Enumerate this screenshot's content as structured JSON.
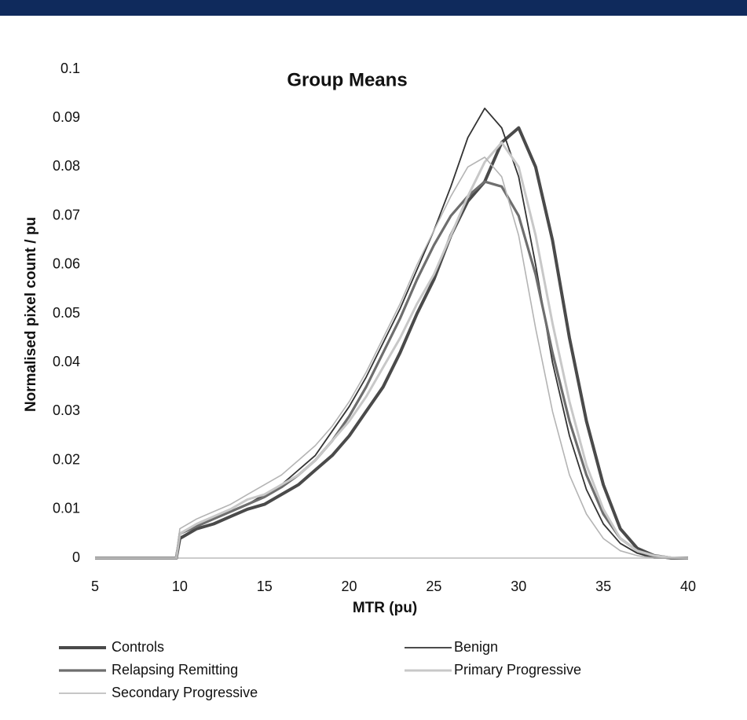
{
  "chart_data": {
    "type": "line",
    "title": "Group Means",
    "x_label": "MTR (pu)",
    "y_label": "Normalised pixel count / pu",
    "x": [
      5,
      9.8,
      10,
      11,
      12,
      13,
      14,
      15,
      16,
      17,
      18,
      19,
      20,
      21,
      22,
      23,
      24,
      25,
      26,
      27,
      28,
      29,
      30,
      31,
      32,
      33,
      34,
      35,
      36,
      37,
      38,
      39,
      40
    ],
    "series": [
      {
        "name": "Controls",
        "color": "#4a4a4a",
        "width": 4,
        "values": [
          0,
          0,
          0.004,
          0.006,
          0.007,
          0.0085,
          0.01,
          0.011,
          0.013,
          0.015,
          0.018,
          0.021,
          0.025,
          0.03,
          0.035,
          0.042,
          0.05,
          0.057,
          0.066,
          0.073,
          0.077,
          0.085,
          0.088,
          0.08,
          0.065,
          0.045,
          0.028,
          0.015,
          0.006,
          0.002,
          0.0005,
          0,
          0
        ]
      },
      {
        "name": "Benign",
        "color": "#333333",
        "width": 1.8,
        "values": [
          0,
          0,
          0.005,
          0.007,
          0.008,
          0.0095,
          0.011,
          0.013,
          0.015,
          0.018,
          0.021,
          0.026,
          0.031,
          0.037,
          0.044,
          0.051,
          0.059,
          0.067,
          0.076,
          0.086,
          0.092,
          0.088,
          0.078,
          0.06,
          0.04,
          0.025,
          0.014,
          0.007,
          0.003,
          0.001,
          0,
          0,
          0
        ]
      },
      {
        "name": "Relapsing Remitting",
        "color": "#6e6e6e",
        "width": 3.2,
        "values": [
          0,
          0,
          0.005,
          0.0065,
          0.008,
          0.0095,
          0.011,
          0.0125,
          0.0145,
          0.017,
          0.02,
          0.024,
          0.029,
          0.035,
          0.042,
          0.049,
          0.057,
          0.064,
          0.07,
          0.074,
          0.077,
          0.076,
          0.07,
          0.058,
          0.042,
          0.028,
          0.017,
          0.009,
          0.004,
          0.0015,
          0.0003,
          0,
          0
        ]
      },
      {
        "name": "Primary Progressive",
        "color": "#c8c8c8",
        "width": 3,
        "values": [
          0,
          0,
          0.005,
          0.007,
          0.0085,
          0.01,
          0.012,
          0.013,
          0.015,
          0.017,
          0.02,
          0.024,
          0.028,
          0.033,
          0.039,
          0.045,
          0.052,
          0.058,
          0.066,
          0.074,
          0.081,
          0.085,
          0.08,
          0.066,
          0.048,
          0.032,
          0.019,
          0.01,
          0.004,
          0.0015,
          0.0005,
          0.0001,
          0
        ]
      },
      {
        "name": "Secondary Progressive",
        "color": "#b4b4b4",
        "width": 1.6,
        "values": [
          0,
          0,
          0.006,
          0.008,
          0.0095,
          0.011,
          0.013,
          0.015,
          0.017,
          0.02,
          0.023,
          0.027,
          0.032,
          0.038,
          0.045,
          0.052,
          0.06,
          0.067,
          0.074,
          0.08,
          0.082,
          0.078,
          0.066,
          0.047,
          0.03,
          0.017,
          0.009,
          0.004,
          0.0015,
          0.0005,
          0,
          0,
          0
        ]
      }
    ],
    "xlim": [
      5,
      40
    ],
    "xticks": [
      5,
      10,
      15,
      20,
      25,
      30,
      35,
      40
    ],
    "ylim": [
      0,
      0.1
    ],
    "yticks": [
      0,
      0.01,
      0.02,
      0.03,
      0.04,
      0.05,
      0.06,
      0.07,
      0.08,
      0.09,
      0.1
    ],
    "grid": false
  }
}
